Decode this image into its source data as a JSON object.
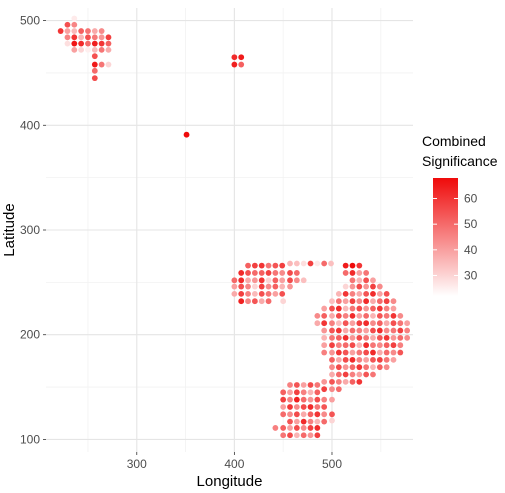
{
  "chart_data": {
    "type": "scatter",
    "xlabel": "Longitude",
    "ylabel": "Latitude",
    "xlim": [
      207,
      583
    ],
    "ylim": [
      88,
      512
    ],
    "x_ticks": [
      300,
      400,
      500
    ],
    "y_ticks": [
      100,
      200,
      300,
      400,
      500
    ],
    "grid": true,
    "legend": {
      "title": "Combined Significance",
      "title_lines": [
        "Combined",
        "Significance"
      ],
      "position": "right",
      "min": 22,
      "max": 68,
      "ticks": [
        30,
        40,
        50,
        60
      ],
      "low_color": "#ffffff",
      "high_color": "#ef0b0b"
    },
    "colors": {
      "grid_minor": "#f2f2f2",
      "grid_major": "#e5e5e5",
      "axis_text": "#4d4d4d"
    },
    "points": [
      [
        236,
        502,
        26
      ],
      [
        229,
        496,
        55
      ],
      [
        236,
        496,
        45
      ],
      [
        222,
        490,
        60
      ],
      [
        229,
        490,
        40
      ],
      [
        236,
        490,
        35
      ],
      [
        243,
        490,
        52
      ],
      [
        250,
        490,
        48
      ],
      [
        257,
        490,
        38
      ],
      [
        264,
        490,
        44
      ],
      [
        229,
        484,
        45
      ],
      [
        236,
        484,
        60
      ],
      [
        243,
        484,
        36
      ],
      [
        250,
        484,
        55
      ],
      [
        257,
        484,
        47
      ],
      [
        264,
        484,
        42
      ],
      [
        271,
        484,
        58
      ],
      [
        229,
        478,
        28
      ],
      [
        236,
        478,
        66
      ],
      [
        243,
        478,
        62
      ],
      [
        250,
        478,
        50
      ],
      [
        257,
        478,
        64
      ],
      [
        264,
        478,
        60
      ],
      [
        271,
        478,
        52
      ],
      [
        236,
        472,
        40
      ],
      [
        243,
        472,
        30
      ],
      [
        250,
        472,
        25
      ],
      [
        257,
        472,
        35
      ],
      [
        264,
        472,
        48
      ],
      [
        271,
        472,
        38
      ],
      [
        257,
        466,
        55
      ],
      [
        257,
        458,
        65
      ],
      [
        264,
        458,
        48
      ],
      [
        271,
        458,
        30
      ],
      [
        257,
        452,
        50
      ],
      [
        257,
        445,
        56
      ],
      [
        400,
        465,
        62
      ],
      [
        407,
        465,
        65
      ],
      [
        400,
        458,
        64
      ],
      [
        407,
        458,
        52
      ],
      [
        351,
        391,
        68
      ],
      [
        414,
        266,
        52
      ],
      [
        421,
        266,
        58
      ],
      [
        428,
        266,
        60
      ],
      [
        435,
        266,
        48
      ],
      [
        442,
        266,
        54
      ],
      [
        449,
        266,
        58
      ],
      [
        457,
        268,
        36
      ],
      [
        464,
        268,
        34
      ],
      [
        471,
        268,
        28
      ],
      [
        478,
        268,
        58
      ],
      [
        485,
        268,
        26
      ],
      [
        492,
        268,
        50
      ],
      [
        499,
        268,
        34
      ],
      [
        514,
        266,
        65
      ],
      [
        521,
        266,
        68
      ],
      [
        528,
        266,
        60
      ],
      [
        407,
        259,
        62
      ],
      [
        414,
        259,
        55
      ],
      [
        421,
        259,
        50
      ],
      [
        428,
        259,
        52
      ],
      [
        435,
        259,
        58
      ],
      [
        442,
        259,
        48
      ],
      [
        449,
        259,
        44
      ],
      [
        457,
        259,
        56
      ],
      [
        464,
        259,
        50
      ],
      [
        514,
        259,
        50
      ],
      [
        521,
        259,
        62
      ],
      [
        528,
        259,
        40
      ],
      [
        535,
        259,
        48
      ],
      [
        400,
        252,
        50
      ],
      [
        407,
        252,
        62
      ],
      [
        414,
        252,
        38
      ],
      [
        421,
        252,
        42
      ],
      [
        428,
        252,
        60
      ],
      [
        435,
        252,
        30
      ],
      [
        442,
        252,
        52
      ],
      [
        449,
        252,
        40
      ],
      [
        457,
        252,
        56
      ],
      [
        464,
        252,
        44
      ],
      [
        471,
        252,
        34
      ],
      [
        521,
        252,
        48
      ],
      [
        528,
        252,
        36
      ],
      [
        535,
        252,
        55
      ],
      [
        542,
        252,
        40
      ],
      [
        400,
        246,
        40
      ],
      [
        407,
        246,
        55
      ],
      [
        414,
        246,
        45
      ],
      [
        421,
        246,
        30
      ],
      [
        428,
        246,
        58
      ],
      [
        435,
        246,
        44
      ],
      [
        442,
        246,
        52
      ],
      [
        449,
        246,
        36
      ],
      [
        457,
        246,
        42
      ],
      [
        514,
        246,
        30
      ],
      [
        521,
        246,
        42
      ],
      [
        528,
        246,
        56
      ],
      [
        535,
        246,
        42
      ],
      [
        542,
        246,
        58
      ],
      [
        549,
        246,
        44
      ],
      [
        400,
        239,
        38
      ],
      [
        407,
        239,
        58
      ],
      [
        414,
        239,
        46
      ],
      [
        421,
        239,
        35
      ],
      [
        428,
        239,
        55
      ],
      [
        435,
        239,
        48
      ],
      [
        442,
        239,
        40
      ],
      [
        449,
        239,
        55
      ],
      [
        507,
        239,
        36
      ],
      [
        514,
        239,
        60
      ],
      [
        521,
        239,
        46
      ],
      [
        528,
        239,
        38
      ],
      [
        535,
        239,
        54
      ],
      [
        542,
        239,
        62
      ],
      [
        549,
        239,
        40
      ],
      [
        556,
        239,
        55
      ],
      [
        407,
        232,
        64
      ],
      [
        414,
        232,
        45
      ],
      [
        421,
        232,
        54
      ],
      [
        428,
        232,
        38
      ],
      [
        435,
        232,
        50
      ],
      [
        450,
        232,
        30
      ],
      [
        500,
        232,
        34
      ],
      [
        507,
        232,
        48
      ],
      [
        514,
        232,
        40
      ],
      [
        521,
        232,
        58
      ],
      [
        528,
        232,
        44
      ],
      [
        535,
        232,
        62
      ],
      [
        542,
        232,
        38
      ],
      [
        549,
        232,
        50
      ],
      [
        556,
        232,
        58
      ],
      [
        563,
        232,
        44
      ],
      [
        492,
        225,
        40
      ],
      [
        500,
        225,
        55
      ],
      [
        507,
        225,
        62
      ],
      [
        514,
        225,
        35
      ],
      [
        521,
        225,
        48
      ],
      [
        528,
        225,
        56
      ],
      [
        535,
        225,
        42
      ],
      [
        542,
        225,
        52
      ],
      [
        549,
        225,
        60
      ],
      [
        556,
        225,
        46
      ],
      [
        563,
        225,
        40
      ],
      [
        485,
        218,
        44
      ],
      [
        492,
        218,
        52
      ],
      [
        500,
        218,
        38
      ],
      [
        507,
        218,
        56
      ],
      [
        514,
        218,
        46
      ],
      [
        521,
        218,
        62
      ],
      [
        528,
        218,
        40
      ],
      [
        535,
        218,
        50
      ],
      [
        542,
        218,
        36
      ],
      [
        549,
        218,
        54
      ],
      [
        556,
        218,
        48
      ],
      [
        563,
        218,
        60
      ],
      [
        570,
        218,
        44
      ],
      [
        485,
        211,
        38
      ],
      [
        492,
        211,
        60
      ],
      [
        500,
        211,
        46
      ],
      [
        507,
        211,
        34
      ],
      [
        514,
        211,
        54
      ],
      [
        521,
        211,
        40
      ],
      [
        528,
        211,
        58
      ],
      [
        535,
        211,
        62
      ],
      [
        542,
        211,
        44
      ],
      [
        549,
        211,
        52
      ],
      [
        556,
        211,
        38
      ],
      [
        563,
        211,
        55
      ],
      [
        570,
        211,
        48
      ],
      [
        577,
        211,
        40
      ],
      [
        492,
        204,
        42
      ],
      [
        500,
        204,
        54
      ],
      [
        507,
        204,
        60
      ],
      [
        514,
        204,
        38
      ],
      [
        521,
        204,
        50
      ],
      [
        528,
        204,
        46
      ],
      [
        535,
        204,
        40
      ],
      [
        542,
        204,
        56
      ],
      [
        549,
        204,
        62
      ],
      [
        556,
        204,
        44
      ],
      [
        563,
        204,
        48
      ],
      [
        570,
        204,
        58
      ],
      [
        577,
        204,
        46
      ],
      [
        492,
        197,
        36
      ],
      [
        500,
        197,
        48
      ],
      [
        507,
        197,
        52
      ],
      [
        514,
        197,
        62
      ],
      [
        521,
        197,
        42
      ],
      [
        528,
        197,
        56
      ],
      [
        535,
        197,
        48
      ],
      [
        542,
        197,
        38
      ],
      [
        549,
        197,
        54
      ],
      [
        556,
        197,
        60
      ],
      [
        563,
        197,
        42
      ],
      [
        570,
        197,
        50
      ],
      [
        577,
        197,
        44
      ],
      [
        492,
        190,
        40
      ],
      [
        500,
        190,
        58
      ],
      [
        507,
        190,
        46
      ],
      [
        514,
        190,
        50
      ],
      [
        521,
        190,
        56
      ],
      [
        528,
        190,
        36
      ],
      [
        535,
        190,
        62
      ],
      [
        542,
        190,
        48
      ],
      [
        549,
        190,
        44
      ],
      [
        556,
        190,
        52
      ],
      [
        563,
        190,
        58
      ],
      [
        570,
        190,
        46
      ],
      [
        492,
        183,
        46
      ],
      [
        500,
        183,
        42
      ],
      [
        507,
        183,
        60
      ],
      [
        514,
        183,
        54
      ],
      [
        521,
        183,
        40
      ],
      [
        528,
        183,
        48
      ],
      [
        535,
        183,
        56
      ],
      [
        542,
        183,
        62
      ],
      [
        549,
        183,
        38
      ],
      [
        556,
        183,
        50
      ],
      [
        563,
        183,
        44
      ],
      [
        570,
        183,
        54
      ],
      [
        500,
        176,
        52
      ],
      [
        507,
        176,
        38
      ],
      [
        514,
        176,
        56
      ],
      [
        521,
        176,
        62
      ],
      [
        528,
        176,
        46
      ],
      [
        535,
        176,
        40
      ],
      [
        542,
        176,
        54
      ],
      [
        549,
        176,
        58
      ],
      [
        556,
        176,
        48
      ],
      [
        563,
        176,
        40
      ],
      [
        500,
        169,
        44
      ],
      [
        507,
        169,
        56
      ],
      [
        514,
        169,
        42
      ],
      [
        521,
        169,
        50
      ],
      [
        528,
        169,
        60
      ],
      [
        535,
        169,
        48
      ],
      [
        542,
        169,
        36
      ],
      [
        549,
        169,
        52
      ],
      [
        556,
        169,
        44
      ],
      [
        500,
        162,
        38
      ],
      [
        507,
        162,
        50
      ],
      [
        514,
        162,
        58
      ],
      [
        521,
        162,
        46
      ],
      [
        528,
        162,
        40
      ],
      [
        535,
        162,
        54
      ],
      [
        542,
        162,
        48
      ],
      [
        492,
        155,
        42
      ],
      [
        500,
        155,
        54
      ],
      [
        507,
        155,
        46
      ],
      [
        514,
        155,
        38
      ],
      [
        521,
        155,
        52
      ],
      [
        528,
        155,
        60
      ],
      [
        457,
        152,
        46
      ],
      [
        464,
        152,
        54
      ],
      [
        471,
        152,
        40
      ],
      [
        478,
        152,
        56
      ],
      [
        485,
        152,
        48
      ],
      [
        492,
        148,
        58
      ],
      [
        500,
        148,
        44
      ],
      [
        507,
        148,
        50
      ],
      [
        450,
        145,
        52
      ],
      [
        457,
        145,
        40
      ],
      [
        464,
        145,
        58
      ],
      [
        471,
        145,
        46
      ],
      [
        478,
        145,
        36
      ],
      [
        485,
        145,
        52
      ],
      [
        450,
        138,
        58
      ],
      [
        457,
        138,
        46
      ],
      [
        464,
        138,
        64
      ],
      [
        471,
        138,
        50
      ],
      [
        478,
        138,
        42
      ],
      [
        485,
        138,
        56
      ],
      [
        492,
        138,
        46
      ],
      [
        500,
        138,
        40
      ],
      [
        450,
        131,
        40
      ],
      [
        457,
        131,
        60
      ],
      [
        464,
        131,
        44
      ],
      [
        471,
        131,
        56
      ],
      [
        478,
        131,
        62
      ],
      [
        485,
        131,
        48
      ],
      [
        492,
        131,
        54
      ],
      [
        450,
        124,
        50
      ],
      [
        457,
        124,
        44
      ],
      [
        464,
        124,
        56
      ],
      [
        471,
        124,
        38
      ],
      [
        478,
        124,
        52
      ],
      [
        485,
        124,
        60
      ],
      [
        492,
        124,
        44
      ],
      [
        500,
        124,
        54
      ],
      [
        457,
        117,
        54
      ],
      [
        464,
        117,
        40
      ],
      [
        471,
        117,
        62
      ],
      [
        478,
        117,
        46
      ],
      [
        485,
        117,
        36
      ],
      [
        492,
        117,
        50
      ],
      [
        500,
        118,
        30
      ],
      [
        442,
        111,
        46
      ],
      [
        450,
        111,
        52
      ],
      [
        457,
        111,
        40
      ],
      [
        464,
        111,
        56
      ],
      [
        471,
        111,
        44
      ],
      [
        478,
        111,
        58
      ],
      [
        485,
        111,
        62
      ],
      [
        450,
        104,
        48
      ],
      [
        457,
        104,
        56
      ],
      [
        464,
        104,
        36
      ],
      [
        471,
        104,
        50
      ],
      [
        478,
        104,
        42
      ],
      [
        485,
        104,
        58
      ]
    ]
  }
}
